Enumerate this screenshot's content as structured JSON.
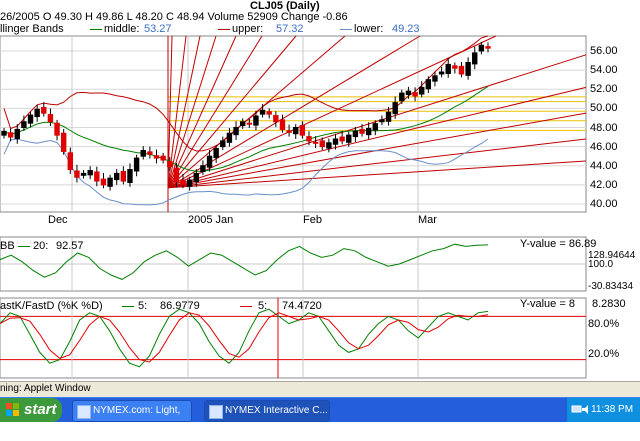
{
  "header": {
    "title": "CLJ05 (Daily)",
    "ohlc_line": "26/2005  O  49.30   H  49.86   L  48.20   C  48.94   Volume   52909   Change   -0.86",
    "bb_label": "llinger Bands",
    "middle_label": "middle:",
    "middle_value": "53.27",
    "upper_label": "upper:",
    "upper_value": "57.32",
    "lower_label": "lower:",
    "lower_value": "49.23"
  },
  "price_axis": [
    "56.00",
    "54.00",
    "52.00",
    "50.00",
    "48.00",
    "46.00",
    "44.00",
    "42.00",
    "40.00"
  ],
  "date_axis": [
    "Dec",
    "2005 Jan",
    "Feb",
    "Mar"
  ],
  "cci_panel": {
    "label": "BB",
    "period_label": "20:",
    "period_value": "92.57",
    "y_value": "Y-value = 86.89",
    "axis_top": "128.94644",
    "axis_mid": "100.0",
    "axis_bot": "-30.83434"
  },
  "stoch_panel": {
    "label": "astK/FastD (%K %D)",
    "k_label": "5:",
    "k_value": "86.9779",
    "d_label": "5:",
    "d_value": "74.4720",
    "y_value": "Y-value = 8",
    "y_value_overlap": "8.2830",
    "axis_top": "80.0%",
    "axis_bot": "20.0%"
  },
  "status_bar": "ning: Applet Window",
  "taskbar": {
    "start_label": "start",
    "tasks": [
      "NYMEX.com: Light, S...",
      "NYMEX Interactive C..."
    ],
    "clock": "11:38 PM"
  },
  "colors": {
    "up_candle": "#000000",
    "down_candle": "#e00000",
    "middle_band": "#008000",
    "upper_band": "#c00000",
    "lower_band": "#6a8fc8",
    "fan_lines": "#c00000",
    "fib_lines": "#e8c000",
    "k_line": "#008000",
    "d_line": "#e00000"
  }
}
